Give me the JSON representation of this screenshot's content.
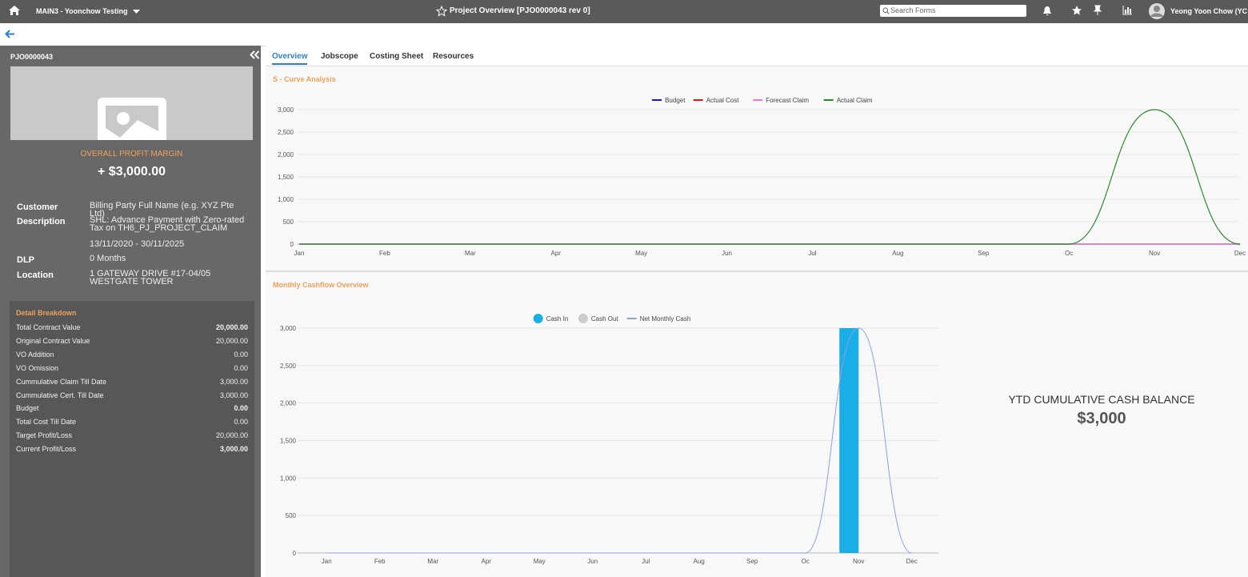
{
  "header": {
    "workspace": "MAIN3 - Yoonchow Testing",
    "title": "Project Overview [PJO0000043 rev 0]",
    "search_placeholder": "Search Forms",
    "user": "Yeong Yoon Chow (YC"
  },
  "sidebar": {
    "project_code": "PJO0000043",
    "profit_label": "OVERALL PROFIT MARGIN",
    "profit_value": "+ $3,000.00",
    "info": [
      {
        "label": "Customer",
        "value": "Billing Party Full Name (e.g. XYZ Pte Ltd)"
      },
      {
        "label": "Description",
        "value": "SHL: Advance Payment with Zero-rated Tax on TH6_PJ_PROJECT_CLAIM"
      },
      {
        "value": "13/11/2020 - 30/11/2025"
      },
      {
        "label": "DLP",
        "value": "0 Months"
      },
      {
        "label": "Location",
        "value": "1 GATEWAY DRIVE #17-04/05 WESTGATE TOWER"
      }
    ],
    "breakdown": {
      "title": "Detail Breakdown",
      "rows": [
        {
          "label": "Total Contract Value",
          "value": "20,000.00",
          "bold": true
        },
        {
          "label": "Original Contract Value",
          "value": "20,000.00",
          "bold": false
        },
        {
          "label": "VO Addition",
          "value": "0.00",
          "bold": false
        },
        {
          "label": "VO Omission",
          "value": "0.00",
          "bold": false
        },
        {
          "label": "Cummulative Claim Till Date",
          "value": "3,000.00",
          "bold": false
        },
        {
          "label": "Cummulative Cert. Till Date",
          "value": "3,000.00",
          "bold": false
        },
        {
          "label": "Budget",
          "value": "0.00",
          "bold": true
        },
        {
          "label": "Total Cost Till Date",
          "value": "0.00",
          "bold": false
        },
        {
          "label": "Target Profit/Loss",
          "value": "20,000.00",
          "bold": false
        },
        {
          "label": "Current Profit/Loss",
          "value": "3,000.00",
          "bold": true
        }
      ]
    }
  },
  "tabs": [
    "Overview",
    "Jobscope",
    "Costing Sheet",
    "Resources"
  ],
  "chart_data": [
    {
      "type": "line",
      "title": "S - Curve Analysis",
      "categories": [
        "Jan",
        "Feb",
        "Mar",
        "Apr",
        "May",
        "Jun",
        "Jul",
        "Aug",
        "Sep",
        "Oc",
        "Nov",
        "Dec"
      ],
      "series": [
        {
          "name": "Budget",
          "color": "#1414c8",
          "values": [
            0,
            0,
            0,
            0,
            0,
            0,
            0,
            0,
            0,
            0,
            0,
            0
          ]
        },
        {
          "name": "Actual Cost",
          "color": "#e01414",
          "values": [
            0,
            0,
            0,
            0,
            0,
            0,
            0,
            0,
            0,
            0,
            0,
            0
          ]
        },
        {
          "name": "Forecast Claim",
          "color": "#e678e6",
          "values": [
            0,
            0,
            0,
            0,
            0,
            0,
            0,
            0,
            0,
            0,
            0,
            0
          ]
        },
        {
          "name": "Actual Claim",
          "color": "#2a8a2a",
          "values": [
            0,
            0,
            0,
            0,
            0,
            0,
            0,
            0,
            0,
            0,
            3000,
            0
          ]
        }
      ],
      "ylim": [
        0,
        3000
      ],
      "yticks": [
        0,
        500,
        {
          "value": 1000,
          "label": "1,000"
        },
        {
          "value": 1500,
          "label": "1,500"
        },
        {
          "value": 2000,
          "label": "2,000"
        },
        {
          "value": 2500,
          "label": "2,500"
        },
        {
          "value": 3000,
          "label": "3,000"
        }
      ],
      "grid": true
    },
    {
      "type": "combo",
      "title": "Monthly Cashflow Overview",
      "categories": [
        "Jan",
        "Feb",
        "Mar",
        "Apr",
        "May",
        "Jun",
        "Jul",
        "Aug",
        "Sep",
        "Oc",
        "Nov",
        "Dec"
      ],
      "series": [
        {
          "name": "Cash In",
          "type": "bar",
          "color": "#1aaee8",
          "values": [
            0,
            0,
            0,
            0,
            0,
            0,
            0,
            0,
            0,
            0,
            3000,
            0
          ]
        },
        {
          "name": "Cash Out",
          "type": "bar",
          "color": "#cccccc",
          "values": [
            0,
            0,
            0,
            0,
            0,
            0,
            0,
            0,
            0,
            0,
            0,
            0
          ]
        },
        {
          "name": "Net Monthly Cash",
          "type": "line",
          "color": "#8ea0de",
          "values": [
            0,
            0,
            0,
            0,
            0,
            0,
            0,
            0,
            0,
            0,
            3000,
            0
          ]
        }
      ],
      "ylim": [
        0,
        3000
      ],
      "yticks": [
        0,
        500,
        {
          "value": 1000,
          "label": "1,000"
        },
        {
          "value": 1500,
          "label": "1,500"
        },
        {
          "value": 2000,
          "label": "2,000"
        },
        {
          "value": 2500,
          "label": "2,500"
        },
        {
          "value": 3000,
          "label": "3,000"
        }
      ],
      "grid": true
    }
  ],
  "cash_balance": {
    "label": "YTD CUMULATIVE CASH BALANCE",
    "value": "$3,000"
  }
}
